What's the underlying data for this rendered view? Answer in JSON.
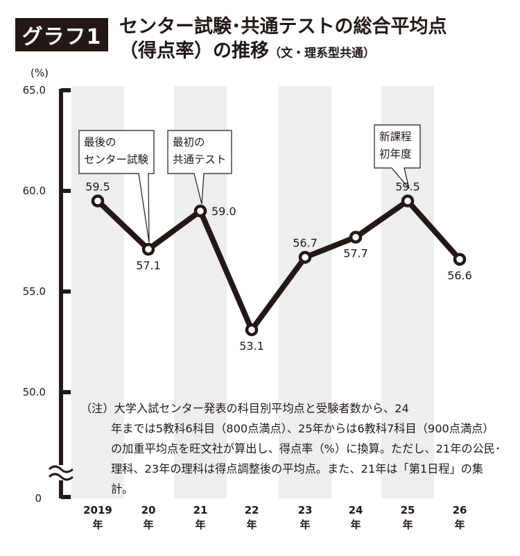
{
  "header": {
    "badge": "グラフ1",
    "title_line1": "センター試験･共通テストの総合平均点",
    "title_line2": "（得点率）の推移",
    "title_sub": "（文・理系型共通）"
  },
  "chart_data": {
    "type": "line",
    "title": "センター試験･共通テストの総合平均点（得点率）の推移",
    "subtitle": "（文・理系型共通）",
    "ylabel": "(%)",
    "xlabel": "",
    "ylim": [
      50,
      65
    ],
    "y_ticks": [
      {
        "value": 65,
        "label": "65.0"
      },
      {
        "value": 60,
        "label": "60.0"
      },
      {
        "value": 55,
        "label": "55.0"
      },
      {
        "value": 50,
        "label": "50.0"
      }
    ],
    "y_axis_zero_label": "0",
    "y_axis_break": true,
    "grid": false,
    "alternating_column_shading": true,
    "categories": [
      {
        "top": "2019",
        "bottom": "年"
      },
      {
        "top": "20",
        "bottom": "年"
      },
      {
        "top": "21",
        "bottom": "年"
      },
      {
        "top": "22",
        "bottom": "年"
      },
      {
        "top": "23",
        "bottom": "年"
      },
      {
        "top": "24",
        "bottom": "年"
      },
      {
        "top": "25",
        "bottom": "年"
      },
      {
        "top": "26",
        "bottom": "年"
      }
    ],
    "series": [
      {
        "values": [
          59.5,
          57.1,
          59.0,
          53.1,
          56.7,
          57.7,
          59.5,
          56.6
        ],
        "color": "#231815"
      }
    ],
    "data_labels": [
      "59.5",
      "57.1",
      "59.0",
      "53.1",
      "56.7",
      "57.7",
      "59.5",
      "56.6"
    ],
    "label_positions": [
      "above",
      "below",
      "right",
      "below",
      "above",
      "below",
      "above",
      "below"
    ],
    "callouts": [
      {
        "point_index": 1,
        "lines": [
          "最後の",
          "センター試験"
        ]
      },
      {
        "point_index": 2,
        "lines": [
          "最初の",
          "共通テスト"
        ]
      },
      {
        "point_index": 6,
        "lines": [
          "新課程",
          "初年度"
        ]
      }
    ],
    "colors": {
      "line": "#231815",
      "shade": "#eeeeee",
      "background": "#ffffff"
    }
  },
  "note": {
    "first_line": "（注）大学入試センター発表の科目別平均点と受験者数から、24",
    "rest": "年までは5教科6科目（800点満点）、25年からは6教科7科目（900点満点）の加重平均点を旺文社が算出し、得点率（%）に換算。ただし、21年の公民･理科、23年の理科は得点調整後の平均点。また、21年は「第1日程」の集計。"
  }
}
